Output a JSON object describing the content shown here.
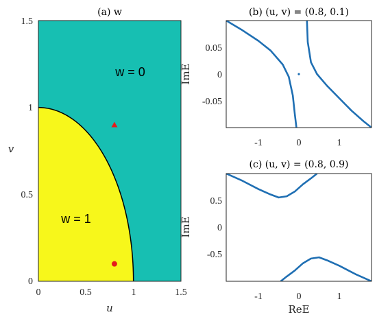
{
  "colors": {
    "teal": "#17bfb2",
    "yellow": "#f7f71b",
    "curve": "#1f6fb3",
    "marker": "#e51c1c"
  },
  "chart_data": [
    {
      "type": "heatmap",
      "title": "(a) w",
      "xlabel": "u",
      "ylabel": "v",
      "xlim": [
        0,
        1.5
      ],
      "ylim": [
        0,
        1.5
      ],
      "xticks": [
        "0",
        "0.5",
        "1",
        "1.5"
      ],
      "yticks": [
        "0",
        "0.5",
        "1",
        "1.5"
      ],
      "regions": [
        {
          "label": "w = 0",
          "color": "teal"
        },
        {
          "label": "w = 1",
          "color": "yellow",
          "boundary": "quarter-ellipse",
          "u_radius": 1.0,
          "v_radius": 1.0
        }
      ],
      "markers": [
        {
          "shape": "triangle",
          "u": 0.8,
          "v": 0.9
        },
        {
          "shape": "circle",
          "u": 0.8,
          "v": 0.1
        }
      ]
    },
    {
      "type": "scatter",
      "title": "(b) (u, v) = (0.8, 0.1)",
      "xlabel": "",
      "ylabel": "ImE",
      "xlim": [
        -1.8,
        1.8
      ],
      "ylim": [
        -0.1,
        0.1
      ],
      "xticks": [
        "-1",
        "0",
        "1"
      ],
      "yticks": [
        "0.05",
        "0",
        "-0.05"
      ],
      "series": [
        {
          "x": [
            -1.8,
            -1.4,
            -1.0,
            -0.7,
            -0.4,
            -0.25,
            -0.15,
            -0.1,
            -0.06
          ],
          "y": [
            0.1,
            0.082,
            0.062,
            0.044,
            0.018,
            -0.005,
            -0.04,
            -0.075,
            -0.1
          ]
        },
        {
          "x": [
            0.2,
            0.22,
            0.3,
            0.45,
            0.7,
            1.0,
            1.3,
            1.6,
            1.8
          ],
          "y": [
            0.1,
            0.06,
            0.022,
            0.0,
            -0.022,
            -0.045,
            -0.068,
            -0.088,
            -0.1
          ]
        },
        {
          "x": [
            0.0
          ],
          "y": [
            0.0
          ]
        }
      ]
    },
    {
      "type": "scatter",
      "title": "(c) (u, v) = (0.8, 0.9)",
      "xlabel": "ReE",
      "ylabel": "ImE",
      "xlim": [
        -1.8,
        1.8
      ],
      "ylim": [
        -0.9,
        0.9
      ],
      "xticks": [
        "-1",
        "0",
        "1"
      ],
      "yticks": [
        "0.5",
        "0",
        "-0.5"
      ],
      "series": [
        {
          "x": [
            -1.8,
            -1.4,
            -1.0,
            -0.7,
            -0.5,
            -0.3,
            -0.1,
            0.1,
            0.3,
            0.45
          ],
          "y": [
            0.9,
            0.78,
            0.64,
            0.55,
            0.5,
            0.52,
            0.6,
            0.72,
            0.82,
            0.9
          ]
        },
        {
          "x": [
            -0.45,
            -0.3,
            -0.1,
            0.1,
            0.3,
            0.5,
            0.7,
            1.0,
            1.4,
            1.8
          ],
          "y": [
            -0.9,
            -0.82,
            -0.72,
            -0.6,
            -0.52,
            -0.5,
            -0.55,
            -0.64,
            -0.78,
            -0.9
          ]
        }
      ]
    }
  ]
}
